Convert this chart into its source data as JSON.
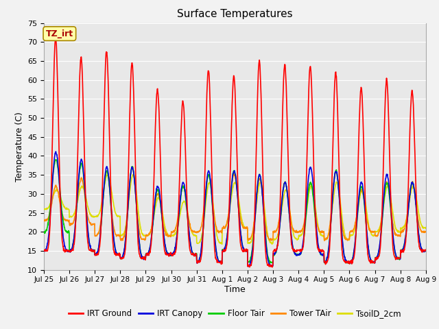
{
  "title": "Surface Temperatures",
  "xlabel": "Time",
  "ylabel": "Temperature (C)",
  "ylim": [
    10,
    75
  ],
  "yticks": [
    10,
    15,
    20,
    25,
    30,
    35,
    40,
    45,
    50,
    55,
    60,
    65,
    70,
    75
  ],
  "xtick_labels": [
    "Jul 25",
    "Jul 26",
    "Jul 27",
    "Jul 28",
    "Jul 29",
    "Jul 30",
    "Jul 31",
    "Aug 1",
    "Aug 2",
    "Aug 3",
    "Aug 4",
    "Aug 5",
    "Aug 6",
    "Aug 7",
    "Aug 8",
    "Aug 9"
  ],
  "series": {
    "IRT Ground": {
      "color": "#ff0000",
      "lw": 1.2
    },
    "IRT Canopy": {
      "color": "#0000dd",
      "lw": 1.2
    },
    "Floor Tair": {
      "color": "#00cc00",
      "lw": 1.2
    },
    "Tower TAir": {
      "color": "#ff8800",
      "lw": 1.2
    },
    "TsoilD_2cm": {
      "color": "#dddd00",
      "lw": 1.2
    }
  },
  "annotation_text": "TZ_irt",
  "annotation_color": "#aa0000",
  "annotation_bg": "#ffffaa",
  "annotation_border": "#aa8800",
  "fig_bg": "#f2f2f2",
  "plot_bg": "#e8e8e8",
  "grid_color": "#ffffff",
  "n_days": 15,
  "points_per_day": 96,
  "irt_ground_peaks": [
    71,
    66,
    67.5,
    64.5,
    57.5,
    54.5,
    62.5,
    61,
    65,
    64,
    63.5,
    62,
    58,
    60,
    57
  ],
  "irt_ground_nights": [
    15,
    15,
    14,
    13,
    14,
    14,
    12,
    15,
    11,
    15,
    15,
    12,
    12,
    13,
    15,
    17
  ],
  "irt_canopy_peaks": [
    41,
    39,
    37,
    37,
    32,
    33,
    36,
    36,
    35,
    33,
    37,
    36,
    33,
    35,
    33
  ],
  "irt_canopy_nights": [
    15,
    15,
    14,
    13,
    14,
    14,
    12,
    15,
    11,
    14,
    14,
    12,
    12,
    13,
    15,
    17
  ],
  "floor_tair_peaks": [
    39,
    38,
    36,
    37,
    31,
    32,
    35,
    36,
    35,
    33,
    33,
    36,
    32,
    33,
    33
  ],
  "floor_tair_nights": [
    20,
    15,
    14,
    13,
    14,
    14,
    12,
    15,
    12,
    14,
    14,
    12,
    12,
    13,
    15,
    17
  ],
  "tower_tair_peaks": [
    32,
    34,
    36,
    37,
    30,
    32,
    35,
    35,
    34,
    33,
    33,
    36,
    31,
    33,
    33
  ],
  "tower_tair_nights": [
    23,
    22,
    19,
    18,
    19,
    20,
    20,
    21,
    18,
    20,
    20,
    18,
    20,
    19,
    20,
    22
  ],
  "tsoil_peaks": [
    31,
    32,
    35,
    35,
    29,
    28,
    33,
    33,
    33,
    31,
    32,
    33,
    31,
    32,
    32
  ],
  "tsoil_nights": [
    26,
    24,
    24,
    19,
    19,
    19,
    17,
    21,
    17,
    18,
    19,
    18,
    19,
    20,
    21,
    23
  ]
}
